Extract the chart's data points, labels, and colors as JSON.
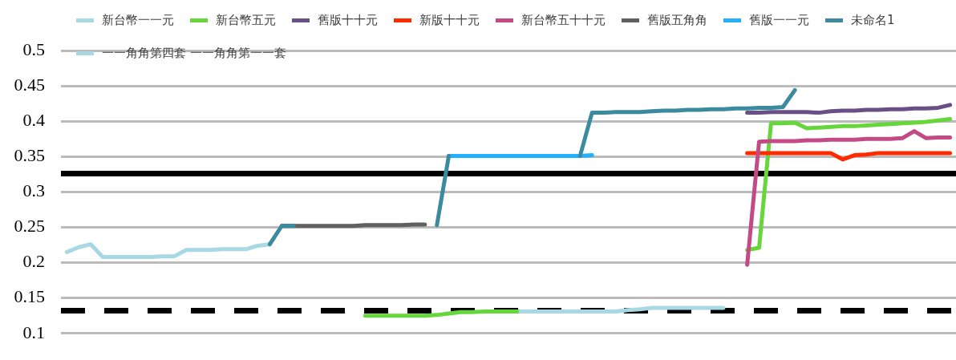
{
  "chart_data": {
    "type": "line",
    "categories": [
      null,
      null,
      null,
      null,
      null,
      null,
      null,
      null,
      null,
      null,
      null,
      null,
      null,
      null,
      null,
      null,
      null,
      null,
      null,
      null,
      null,
      null,
      null,
      null,
      null,
      null,
      null,
      null,
      null,
      null,
      null,
      null,
      null,
      null,
      null,
      null,
      null,
      null,
      null,
      null,
      null,
      null,
      null,
      null,
      null,
      null,
      null,
      null,
      null,
      null,
      null,
      null,
      null,
      null,
      null,
      null,
      null,
      null,
      null,
      null,
      null,
      null,
      null,
      null,
      null,
      null,
      null,
      null,
      null,
      null,
      null,
      null,
      null,
      null,
      null
    ],
    "ylim": [
      0.1,
      0.5
    ],
    "yticks": [
      0.1,
      0.15,
      0.2,
      0.25,
      0.3,
      0.35,
      0.4,
      0.45,
      0.5
    ],
    "grid": "y",
    "legend": "top",
    "tick_labels": "y",
    "marker": "none",
    "line_style": "solid",
    "ref_lines": [
      {
        "axis": "y",
        "value": 0.326,
        "color": "#000000",
        "line_style": "solid"
      },
      {
        "axis": "y",
        "value": 0.132,
        "color": "#000000",
        "line_style": "dashed"
      }
    ],
    "series": [
      {
        "name": "新台幣一一元",
        "color": "#a8d8e4",
        "values": [
          0.215,
          0.222,
          0.226,
          0.208,
          0.208,
          0.208,
          0.208,
          0.208,
          0.209,
          0.209,
          0.218,
          0.218,
          0.218,
          0.219,
          0.219,
          0.219,
          0.224,
          0.226,
          null,
          null,
          null,
          null,
          null,
          null,
          null,
          null,
          null,
          null,
          null,
          null,
          null,
          null,
          null,
          null,
          null,
          null,
          null,
          null,
          null,
          null,
          null,
          null,
          null,
          null,
          null,
          null,
          null,
          null,
          null,
          null,
          null,
          null,
          null,
          null,
          null,
          null,
          null,
          null,
          null,
          null,
          null,
          null,
          null,
          null,
          null,
          null,
          null,
          null,
          null,
          null,
          null,
          null,
          null,
          null,
          null
        ]
      },
      {
        "name": "新台幣五元",
        "color": "#66d63a",
        "values": [
          null,
          null,
          null,
          null,
          null,
          null,
          null,
          null,
          null,
          null,
          null,
          null,
          null,
          null,
          null,
          null,
          null,
          null,
          null,
          null,
          null,
          null,
          null,
          null,
          null,
          0.125,
          0.125,
          0.125,
          0.125,
          0.125,
          0.125,
          0.126,
          0.128,
          0.13,
          0.13,
          0.131,
          0.131,
          0.131,
          0.131,
          null,
          null,
          null,
          null,
          null,
          null,
          null,
          null,
          null,
          null,
          null,
          null,
          null,
          null,
          null,
          null,
          null,
          null,
          0.218,
          0.221,
          0.397,
          0.397,
          0.398,
          0.39,
          0.391,
          0.392,
          0.393,
          0.393,
          0.394,
          0.395,
          0.396,
          0.397,
          0.398,
          0.399,
          0.401,
          0.403
        ]
      },
      {
        "name": "舊版十十元",
        "color": "#6a4f86",
        "values": [
          null,
          null,
          null,
          null,
          null,
          null,
          null,
          null,
          null,
          null,
          null,
          null,
          null,
          null,
          null,
          null,
          null,
          null,
          null,
          null,
          null,
          null,
          null,
          null,
          null,
          null,
          null,
          null,
          null,
          null,
          null,
          null,
          null,
          null,
          null,
          null,
          null,
          null,
          null,
          null,
          null,
          null,
          null,
          null,
          null,
          null,
          null,
          null,
          null,
          null,
          null,
          null,
          null,
          null,
          null,
          null,
          null,
          0.412,
          0.412,
          0.413,
          0.413,
          0.413,
          0.413,
          0.412,
          0.414,
          0.415,
          0.415,
          0.416,
          0.416,
          0.417,
          0.417,
          0.418,
          0.418,
          0.419,
          0.423
        ]
      },
      {
        "name": "新版十十元",
        "color": "#ff2a00",
        "values": [
          null,
          null,
          null,
          null,
          null,
          null,
          null,
          null,
          null,
          null,
          null,
          null,
          null,
          null,
          null,
          null,
          null,
          null,
          null,
          null,
          null,
          null,
          null,
          null,
          null,
          null,
          null,
          null,
          null,
          null,
          null,
          null,
          null,
          null,
          null,
          null,
          null,
          null,
          null,
          null,
          null,
          null,
          null,
          null,
          null,
          null,
          null,
          null,
          null,
          null,
          null,
          null,
          null,
          null,
          null,
          null,
          null,
          0.355,
          0.355,
          0.355,
          0.355,
          0.355,
          0.355,
          0.355,
          0.355,
          0.346,
          0.352,
          0.353,
          0.355,
          0.355,
          0.355,
          0.355,
          0.355,
          0.355,
          0.355
        ]
      },
      {
        "name": "新台幣五十十元",
        "color": "#c44a86",
        "values": [
          null,
          null,
          null,
          null,
          null,
          null,
          null,
          null,
          null,
          null,
          null,
          null,
          null,
          null,
          null,
          null,
          null,
          null,
          null,
          null,
          null,
          null,
          null,
          null,
          null,
          null,
          null,
          null,
          null,
          null,
          null,
          null,
          null,
          null,
          null,
          null,
          null,
          null,
          null,
          null,
          null,
          null,
          null,
          null,
          null,
          null,
          null,
          null,
          null,
          null,
          null,
          null,
          null,
          null,
          null,
          null,
          null,
          0.197,
          0.371,
          0.372,
          0.372,
          0.372,
          0.373,
          0.373,
          0.374,
          0.374,
          0.374,
          0.375,
          0.375,
          0.375,
          0.376,
          0.386,
          0.376,
          0.377,
          0.377
        ]
      },
      {
        "name": "舊版五角角",
        "color": "#606060",
        "values": [
          null,
          null,
          null,
          null,
          null,
          null,
          null,
          null,
          null,
          null,
          null,
          null,
          null,
          null,
          null,
          null,
          null,
          null,
          0.252,
          0.252,
          0.252,
          0.252,
          0.252,
          0.252,
          0.252,
          0.253,
          0.253,
          0.253,
          0.253,
          0.254,
          0.254,
          null,
          null,
          null,
          null,
          null,
          null,
          null,
          null,
          null,
          null,
          null,
          null,
          null,
          null,
          null,
          null,
          null,
          null,
          null,
          null,
          null,
          null,
          null,
          null,
          null,
          null,
          null,
          null,
          null,
          null,
          null,
          null,
          null,
          null,
          null,
          null,
          null,
          null,
          null,
          null,
          null,
          null,
          null,
          null
        ]
      },
      {
        "name": "舊版一一元",
        "color": "#22b0ff",
        "values": [
          null,
          null,
          null,
          null,
          null,
          null,
          null,
          null,
          null,
          null,
          null,
          null,
          null,
          null,
          null,
          null,
          null,
          null,
          null,
          null,
          null,
          null,
          null,
          null,
          null,
          null,
          null,
          null,
          null,
          null,
          null,
          null,
          0.351,
          0.351,
          0.351,
          0.351,
          0.351,
          0.351,
          0.351,
          0.351,
          0.351,
          0.351,
          0.351,
          0.351,
          0.352,
          null,
          null,
          null,
          null,
          null,
          null,
          null,
          null,
          null,
          null,
          null,
          null,
          null,
          null,
          null,
          null,
          null,
          null,
          null,
          null,
          null,
          null,
          null,
          null,
          null,
          null,
          null,
          null,
          null,
          null
        ]
      },
      {
        "name": "未命名1",
        "color": "#3a8aa0",
        "values": [
          null,
          null,
          null,
          null,
          null,
          null,
          null,
          null,
          null,
          null,
          null,
          null,
          null,
          null,
          null,
          null,
          null,
          0.226,
          0.252,
          0.252,
          null,
          null,
          null,
          null,
          null,
          null,
          null,
          null,
          null,
          null,
          null,
          0.253,
          0.351,
          null,
          null,
          null,
          null,
          null,
          null,
          null,
          null,
          null,
          null,
          0.351,
          0.412,
          0.412,
          0.413,
          0.413,
          0.413,
          0.414,
          0.415,
          0.415,
          0.416,
          0.416,
          0.417,
          0.417,
          0.418,
          0.418,
          0.419,
          0.419,
          0.42,
          0.444,
          null,
          null,
          null,
          null,
          null,
          null,
          null,
          null,
          null,
          null,
          null,
          null,
          null
        ]
      },
      {
        "name": "一一角角第四套 一一角角第一一套",
        "color": "#a8d8e4",
        "values": [
          null,
          null,
          null,
          null,
          null,
          null,
          null,
          null,
          null,
          null,
          null,
          null,
          null,
          null,
          null,
          null,
          null,
          null,
          null,
          null,
          null,
          null,
          null,
          null,
          null,
          null,
          null,
          null,
          null,
          null,
          null,
          null,
          null,
          null,
          null,
          null,
          null,
          null,
          0.131,
          0.131,
          0.131,
          0.131,
          0.131,
          0.131,
          0.131,
          0.131,
          0.131,
          0.133,
          0.134,
          0.136,
          0.136,
          0.136,
          0.136,
          0.136,
          0.136,
          0.136,
          null,
          null,
          null,
          null,
          null,
          null,
          null,
          null,
          null,
          null,
          null,
          null,
          null,
          null,
          null,
          null,
          null,
          null,
          null
        ]
      }
    ]
  }
}
